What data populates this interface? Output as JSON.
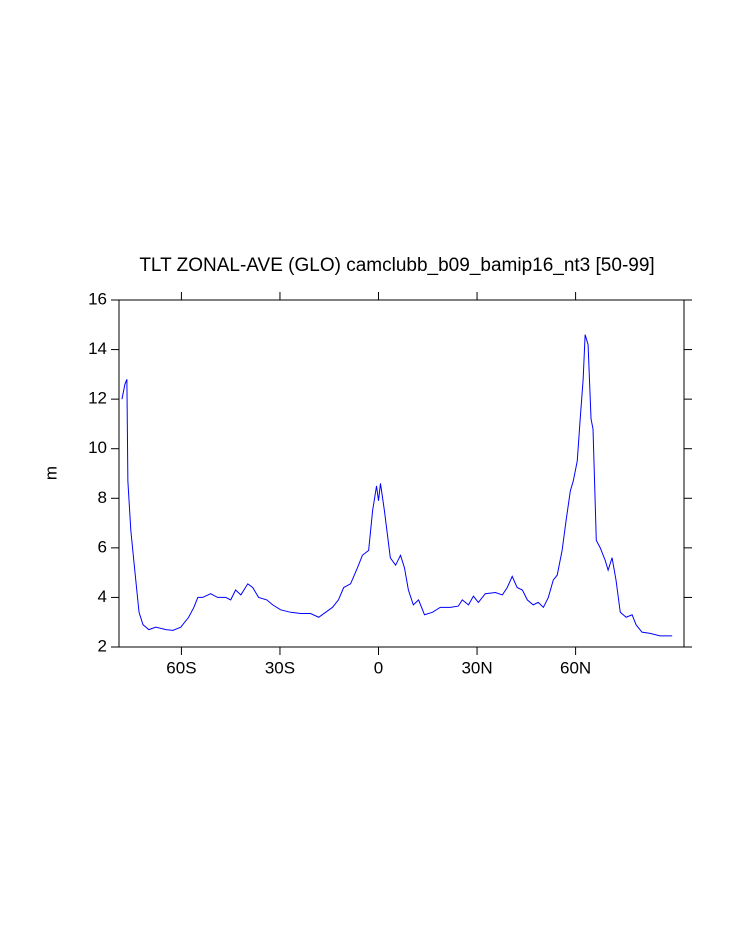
{
  "chart_data": {
    "type": "line",
    "title": "TLT ZONAL-AVE (GLO) camclubb_b09_bamip16_nt3 [50-99]",
    "y_label": "m",
    "x": [
      -78.1,
      -77.2,
      -76.6,
      -76.3,
      -75.4,
      -74.2,
      -72.9,
      -71.7,
      -69.9,
      -67.8,
      -64.7,
      -62.6,
      -60.2,
      -57.8,
      -56.2,
      -55.0,
      -53.5,
      -51.1,
      -49.0,
      -46.5,
      -45.0,
      -43.5,
      -41.9,
      -39.8,
      -38.3,
      -36.5,
      -34.0,
      -32.2,
      -29.8,
      -26.7,
      -23.7,
      -20.7,
      -18.2,
      -16.1,
      -14.0,
      -12.2,
      -10.6,
      -8.5,
      -6.4,
      -4.9,
      -3.0,
      -1.8,
      -0.6,
      0,
      0.6,
      1.8,
      3.6,
      5.2,
      6.7,
      7.9,
      9.1,
      10.6,
      12.2,
      14.0,
      16.4,
      18.8,
      21.9,
      24.3,
      25.5,
      27.4,
      28.9,
      30.4,
      32.5,
      35.6,
      37.7,
      39.2,
      40.7,
      42.2,
      43.8,
      45.3,
      47.1,
      48.6,
      50.2,
      51.7,
      53.2,
      54.4,
      55.9,
      57.1,
      58.4,
      59.3,
      60.5,
      61.4,
      62.3,
      62.9,
      63.8,
      64.7,
      65.3,
      66.3,
      67.5,
      69.0,
      69.9,
      71.1,
      72.3,
      73.6,
      75.4,
      77.2,
      78.4,
      80.2,
      82.7,
      85.7,
      89.4
    ],
    "series": [
      {
        "color": "#0000ff",
        "values": [
          12.0,
          12.6,
          12.8,
          8.7,
          6.7,
          5.1,
          3.4,
          2.9,
          2.7,
          2.8,
          2.7,
          2.67,
          2.8,
          3.2,
          3.6,
          4.0,
          4.0,
          4.15,
          4.0,
          4.0,
          3.9,
          4.3,
          4.1,
          4.55,
          4.4,
          4.0,
          3.9,
          3.7,
          3.5,
          3.4,
          3.35,
          3.35,
          3.2,
          3.4,
          3.6,
          3.9,
          4.4,
          4.55,
          5.2,
          5.7,
          5.9,
          7.5,
          8.5,
          7.9,
          8.6,
          7.5,
          5.6,
          5.3,
          5.7,
          5.2,
          4.3,
          3.7,
          3.9,
          3.3,
          3.4,
          3.6,
          3.6,
          3.65,
          3.9,
          3.7,
          4.05,
          3.8,
          4.15,
          4.2,
          4.1,
          4.4,
          4.85,
          4.4,
          4.3,
          3.9,
          3.7,
          3.8,
          3.6,
          4.0,
          4.7,
          4.9,
          5.9,
          7.1,
          8.3,
          8.7,
          9.5,
          11.2,
          12.8,
          14.6,
          14.2,
          11.2,
          10.8,
          6.3,
          6.0,
          5.5,
          5.1,
          5.6,
          4.7,
          3.4,
          3.2,
          3.3,
          2.9,
          2.6,
          2.55,
          2.45,
          2.45
        ]
      }
    ],
    "xlim": [
      -79,
      93
    ],
    "xticks": [
      {
        "value": -60,
        "label": "60S"
      },
      {
        "value": -30,
        "label": "30S"
      },
      0,
      {
        "value": 30,
        "label": "30N"
      },
      {
        "value": 60,
        "label": "60N"
      }
    ],
    "ylim": [
      2,
      16
    ],
    "yticks": [
      2,
      4,
      6,
      8,
      10,
      12,
      14,
      16
    ]
  }
}
